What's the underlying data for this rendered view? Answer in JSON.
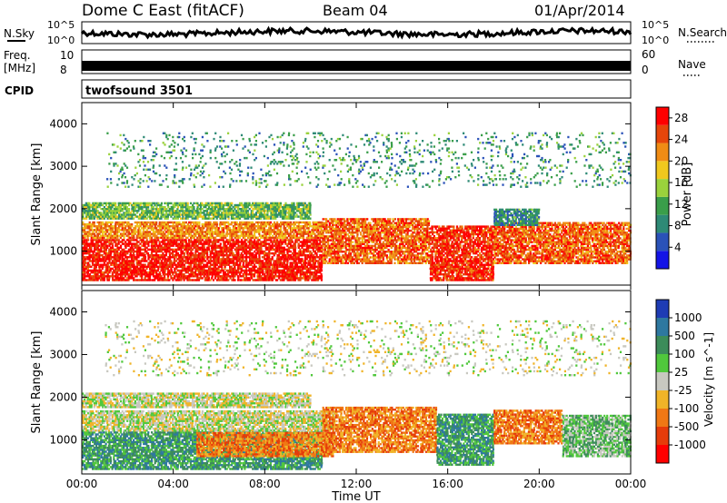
{
  "header": {
    "title": "Dome C East (fitACF)",
    "beam": "Beam 04",
    "date": "01/Apr/2014"
  },
  "top_panels": {
    "nsky_label": "N.Sky",
    "nsky_tick_top": "10^5",
    "nsky_tick_bottom": "10^0",
    "nsearch_label": "N.Search",
    "freq_label": "Freq.",
    "freq_unit": "[MHz]",
    "freq_ticks": [
      "10",
      "8"
    ],
    "nave_label": "Nave",
    "nave_ticks": [
      "60",
      "0"
    ],
    "cpid_label": "CPID",
    "cpid_value": "twofsound 3501"
  },
  "colors": {
    "power": [
      "#1414e6",
      "#2a52b8",
      "#2e8a76",
      "#3a9e4a",
      "#9ad23c",
      "#f0c81e",
      "#f08c14",
      "#e6460a",
      "#ff0000"
    ],
    "velocity": [
      "#1e3cb4",
      "#2e78a0",
      "#3c8c5a",
      "#50c83c",
      "#c8c8c0",
      "#f0b428",
      "#f07814",
      "#e63c0a",
      "#ff0000"
    ]
  },
  "chart_data": [
    {
      "type": "heatmap",
      "name": "power",
      "ylabel": "Slant Range [km]",
      "xlabel": "",
      "ylim": [
        200,
        4500
      ],
      "yticks": [
        "1000",
        "2000",
        "3000",
        "4000"
      ],
      "xlim_hours": [
        0,
        24
      ],
      "xticks": [
        "00:00",
        "04:00",
        "08:00",
        "12:00",
        "16:00",
        "20:00",
        "00:00"
      ],
      "colorbar": {
        "label": "Power [dB]",
        "ticks": [
          "4",
          "8",
          "12",
          "16",
          "20",
          "24",
          "28"
        ],
        "range": [
          0,
          30
        ]
      },
      "bands": [
        {
          "t": [
            0,
            10.5
          ],
          "r": [
            300,
            1300
          ],
          "v": 28
        },
        {
          "t": [
            0,
            10.5
          ],
          "r": [
            1300,
            1700
          ],
          "v": 22
        },
        {
          "t": [
            0,
            10
          ],
          "r": [
            1750,
            2150
          ],
          "v": 13
        },
        {
          "t": [
            10.5,
            15.2
          ],
          "r": [
            700,
            1800
          ],
          "v": 24
        },
        {
          "t": [
            15.2,
            18
          ],
          "r": [
            300,
            1600
          ],
          "v": 27
        },
        {
          "t": [
            18,
            24
          ],
          "r": [
            700,
            1700
          ],
          "v": 24
        },
        {
          "t": [
            18,
            20
          ],
          "r": [
            1600,
            2000
          ],
          "v": 9
        },
        {
          "t": [
            1,
            24
          ],
          "r": [
            2500,
            3800
          ],
          "v": 10
        }
      ]
    },
    {
      "type": "heatmap",
      "name": "velocity",
      "ylabel": "Slant Range [km]",
      "xlabel": "Time UT",
      "ylim": [
        200,
        4500
      ],
      "yticks": [
        "1000",
        "2000",
        "3000",
        "4000"
      ],
      "xlim_hours": [
        0,
        24
      ],
      "xticks": [
        "00:00",
        "04:00",
        "08:00",
        "12:00",
        "16:00",
        "20:00",
        "00:00"
      ],
      "colorbar": {
        "label": "Velocity [m s^-1]",
        "ticks": [
          "1000",
          "500",
          "100",
          "25",
          "-25",
          "-100",
          "-500",
          "-1000"
        ]
      },
      "bands": [
        {
          "t": [
            0,
            10.5
          ],
          "r": [
            300,
            1200
          ],
          "v": 2
        },
        {
          "t": [
            0,
            11
          ],
          "r": [
            1200,
            1700
          ],
          "v": 4
        },
        {
          "t": [
            0,
            10
          ],
          "r": [
            1750,
            2100
          ],
          "v": 4
        },
        {
          "t": [
            5,
            11
          ],
          "r": [
            600,
            1200
          ],
          "v": 6
        },
        {
          "t": [
            10.5,
            15.5
          ],
          "r": [
            700,
            1800
          ],
          "v": 6
        },
        {
          "t": [
            15.5,
            18
          ],
          "r": [
            400,
            1600
          ],
          "v": 2
        },
        {
          "t": [
            18,
            21
          ],
          "r": [
            900,
            1700
          ],
          "v": 6
        },
        {
          "t": [
            21,
            24
          ],
          "r": [
            600,
            1600
          ],
          "v": 3
        },
        {
          "t": [
            1,
            24
          ],
          "r": [
            2500,
            3800
          ],
          "v": 4
        }
      ]
    }
  ]
}
